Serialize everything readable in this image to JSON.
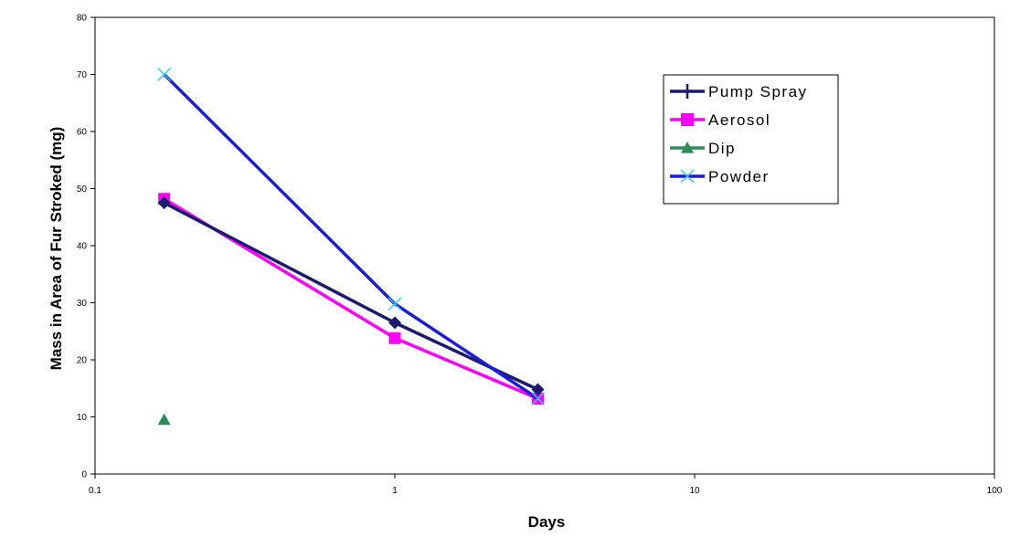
{
  "chart_data": {
    "type": "line",
    "xlabel": "Days",
    "ylabel": "Mass in Area of Fur Stroked (mg)",
    "xscale": "log",
    "xlim": [
      0.1,
      100
    ],
    "ylim": [
      0,
      80
    ],
    "x_ticks": [
      "0.1",
      "1",
      "10",
      "100"
    ],
    "y_ticks": [
      "0",
      "10",
      "20",
      "30",
      "40",
      "50",
      "60",
      "70",
      "80"
    ],
    "legend_position": "top-right",
    "series": [
      {
        "name": "Pump Spray",
        "color": "#1a1a6e",
        "marker": "diamond",
        "x": [
          0.17,
          1,
          3
        ],
        "y": [
          47.5,
          26.5,
          14.8
        ]
      },
      {
        "name": "Aerosol",
        "color": "#ff00ff",
        "marker": "square",
        "x": [
          0.17,
          1,
          3
        ],
        "y": [
          48.2,
          23.8,
          13.2
        ]
      },
      {
        "name": "Dip",
        "color": "#2e8b57",
        "marker": "triangle",
        "x": [
          0.17
        ],
        "y": [
          9.5
        ]
      },
      {
        "name": "Powder",
        "color": "#1c1cdc",
        "marker": "x",
        "marker_color": "#33ccff",
        "x": [
          0.17,
          1,
          3
        ],
        "y": [
          70,
          29.8,
          13.2
        ]
      }
    ]
  }
}
